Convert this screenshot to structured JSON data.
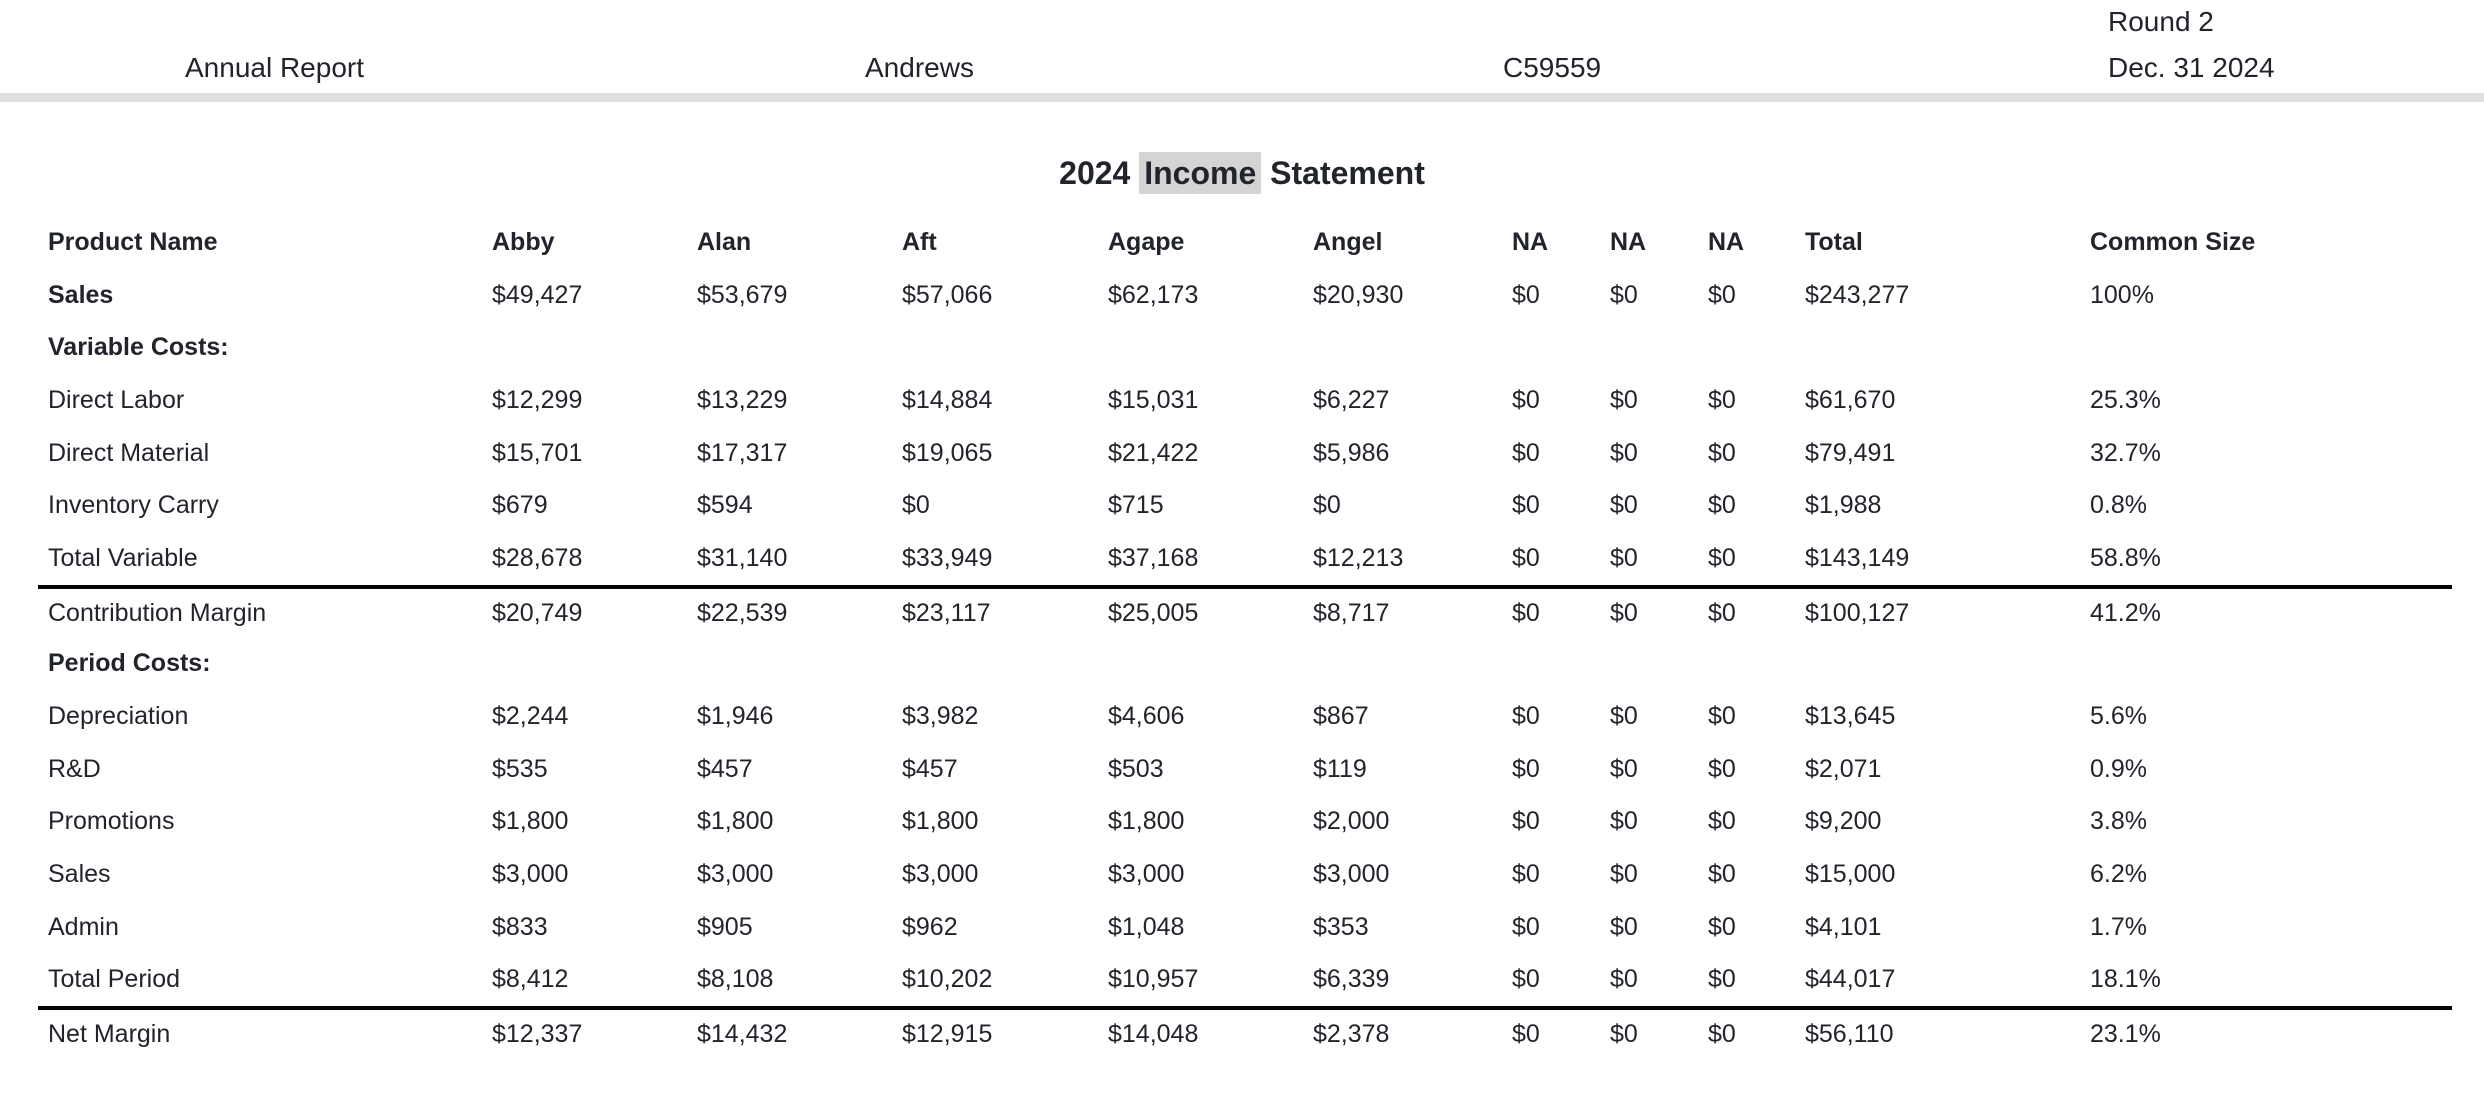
{
  "page": {
    "background": "#ffffff",
    "text_color": "#21242b",
    "divider_color": "#e0e0e0",
    "highlight_color": "#d4d4d4",
    "rule_color": "#060606"
  },
  "header": {
    "report_type": "Annual Report",
    "company": "Andrews",
    "sensor_id": "C59559",
    "round_label": "Round 2",
    "date": "Dec. 31 2024"
  },
  "title": {
    "prefix": "2024 ",
    "highlight": "Income",
    "suffix": " Statement"
  },
  "table": {
    "columns": [
      "Product Name",
      "Abby",
      "Alan",
      "Aft",
      "Agape",
      "Angel",
      "NA",
      "NA",
      "NA",
      "Total",
      "Common Size"
    ],
    "rows": [
      {
        "label": "Sales",
        "bold": true,
        "rule_above": false,
        "values": [
          "$49,427",
          "$53,679",
          "$57,066",
          "$62,173",
          "$20,930",
          "$0",
          "$0",
          "$0",
          "$243,277",
          "100%"
        ]
      },
      {
        "label": "Variable Costs:",
        "bold": true,
        "rule_above": false,
        "values": [
          "",
          "",
          "",
          "",
          "",
          "",
          "",
          "",
          "",
          ""
        ]
      },
      {
        "label": "Direct Labor",
        "bold": false,
        "rule_above": false,
        "values": [
          "$12,299",
          "$13,229",
          "$14,884",
          "$15,031",
          "$6,227",
          "$0",
          "$0",
          "$0",
          "$61,670",
          "25.3%"
        ]
      },
      {
        "label": "Direct Material",
        "bold": false,
        "rule_above": false,
        "values": [
          "$15,701",
          "$17,317",
          "$19,065",
          "$21,422",
          "$5,986",
          "$0",
          "$0",
          "$0",
          "$79,491",
          "32.7%"
        ]
      },
      {
        "label": "Inventory Carry",
        "bold": false,
        "rule_above": false,
        "values": [
          "$679",
          "$594",
          "$0",
          "$715",
          "$0",
          "$0",
          "$0",
          "$0",
          "$1,988",
          "0.8%"
        ]
      },
      {
        "label": "Total Variable",
        "bold": false,
        "rule_above": false,
        "values": [
          "$28,678",
          "$31,140",
          "$33,949",
          "$37,168",
          "$12,213",
          "$0",
          "$0",
          "$0",
          "$143,149",
          "58.8%"
        ]
      },
      {
        "label": "Contribution Margin",
        "bold": false,
        "rule_above": true,
        "values": [
          "$20,749",
          "$22,539",
          "$23,117",
          "$25,005",
          "$8,717",
          "$0",
          "$0",
          "$0",
          "$100,127",
          "41.2%"
        ]
      },
      {
        "label": "Period Costs:",
        "bold": true,
        "rule_above": false,
        "values": [
          "",
          "",
          "",
          "",
          "",
          "",
          "",
          "",
          "",
          ""
        ]
      },
      {
        "label": "Depreciation",
        "bold": false,
        "rule_above": false,
        "values": [
          "$2,244",
          "$1,946",
          "$3,982",
          "$4,606",
          "$867",
          "$0",
          "$0",
          "$0",
          "$13,645",
          "5.6%"
        ]
      },
      {
        "label": "R&D",
        "bold": false,
        "rule_above": false,
        "values": [
          "$535",
          "$457",
          "$457",
          "$503",
          "$119",
          "$0",
          "$0",
          "$0",
          "$2,071",
          "0.9%"
        ]
      },
      {
        "label": "Promotions",
        "bold": false,
        "rule_above": false,
        "values": [
          "$1,800",
          "$1,800",
          "$1,800",
          "$1,800",
          "$2,000",
          "$0",
          "$0",
          "$0",
          "$9,200",
          "3.8%"
        ]
      },
      {
        "label": "Sales",
        "bold": false,
        "rule_above": false,
        "values": [
          "$3,000",
          "$3,000",
          "$3,000",
          "$3,000",
          "$3,000",
          "$0",
          "$0",
          "$0",
          "$15,000",
          "6.2%"
        ]
      },
      {
        "label": "Admin",
        "bold": false,
        "rule_above": false,
        "values": [
          "$833",
          "$905",
          "$962",
          "$1,048",
          "$353",
          "$0",
          "$0",
          "$0",
          "$4,101",
          "1.7%"
        ]
      },
      {
        "label": "Total Period",
        "bold": false,
        "rule_above": false,
        "values": [
          "$8,412",
          "$8,108",
          "$10,202",
          "$10,957",
          "$6,339",
          "$0",
          "$0",
          "$0",
          "$44,017",
          "18.1%"
        ]
      },
      {
        "label": "Net Margin",
        "bold": false,
        "rule_above": true,
        "values": [
          "$12,337",
          "$14,432",
          "$12,915",
          "$14,048",
          "$2,378",
          "$0",
          "$0",
          "$0",
          "$56,110",
          "23.1%"
        ]
      }
    ]
  }
}
